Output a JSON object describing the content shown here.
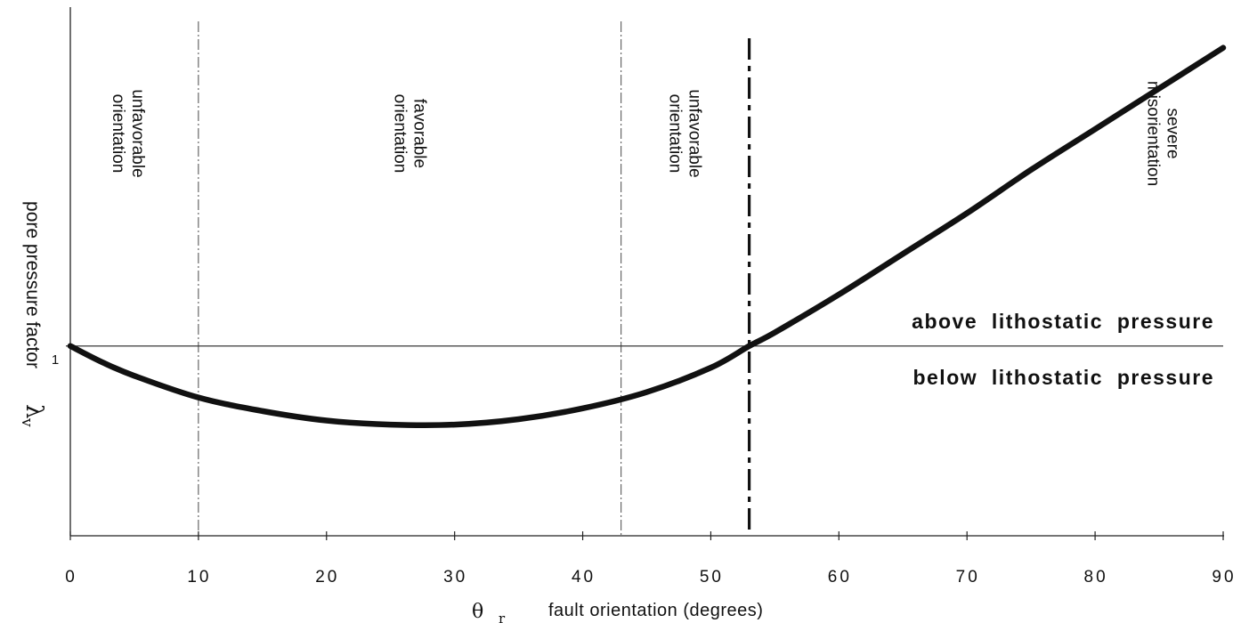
{
  "chart_data": {
    "type": "line",
    "xlabel_symbol": "θ",
    "xlabel_symbol_sub": "r",
    "xlabel": "fault orientation  (degrees)",
    "ylabel": "pore pressure factor",
    "ylabel_symbol": "λ",
    "ylabel_symbol_sub": "v",
    "xlim": [
      0,
      90
    ],
    "x_ticks": [
      0,
      10,
      20,
      30,
      40,
      50,
      60,
      70,
      80,
      90
    ],
    "y_tick_label": "1",
    "y_tick_value": 1.0,
    "ylim": [
      0.3,
      2.25
    ],
    "curve": {
      "x": [
        0,
        2.5,
        5,
        10,
        15,
        20,
        25,
        30,
        35,
        40,
        45,
        50,
        53,
        55,
        60,
        65,
        70,
        75,
        80,
        85,
        90
      ],
      "y": [
        1.0,
        0.94,
        0.89,
        0.81,
        0.76,
        0.725,
        0.71,
        0.71,
        0.73,
        0.77,
        0.83,
        0.92,
        1.0,
        1.05,
        1.19,
        1.34,
        1.49,
        1.65,
        1.8,
        1.95,
        2.1
      ]
    },
    "reference_line_y": 1.0,
    "dashdot_lines_x": [
      10,
      43
    ],
    "dashed_line_x": 53,
    "regions": [
      {
        "x_center": 4.5,
        "lines": [
          "unfavorable",
          "orientation"
        ]
      },
      {
        "x_center": 26.5,
        "lines": [
          "favorable",
          "orientation"
        ]
      },
      {
        "x_center": 48,
        "lines": [
          "unfavorable",
          "orientation"
        ]
      },
      {
        "x_center": 85.3,
        "lines": [
          "severe",
          "misorientation"
        ]
      }
    ],
    "annotations": {
      "above": "above  lithostatic  pressure",
      "below": "below  lithostatic  pressure"
    }
  }
}
